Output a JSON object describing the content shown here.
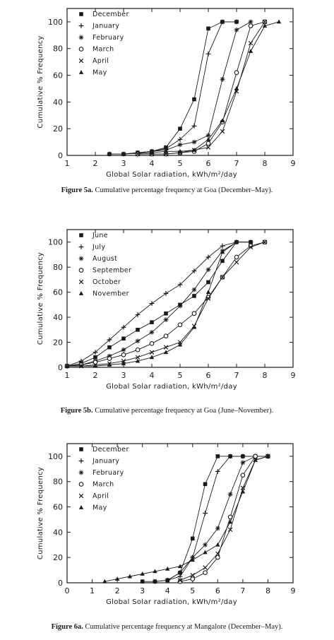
{
  "chart_data": [
    {
      "type": "line",
      "xlabel": "Global Solar radiation, kWh/m²/day",
      "ylabel": "Cumulative % Frequency",
      "xlim": [
        1,
        9
      ],
      "ylim": [
        0,
        110
      ],
      "xticks": [
        1,
        2,
        3,
        4,
        5,
        6,
        7,
        8,
        9
      ],
      "yticks": [
        0,
        20,
        40,
        60,
        80,
        100
      ],
      "legend_position": "top-left",
      "caption_number": "Figure 5a.",
      "caption_text": "Cumulative percentage frequency at Goa (December–May).",
      "series": [
        {
          "name": "December",
          "marker": "square-filled",
          "x": [
            2.5,
            3.0,
            3.5,
            4.0,
            4.5,
            5.0,
            5.5,
            6.0,
            6.5,
            7.0
          ],
          "y": [
            1,
            1,
            2,
            3,
            6,
            20,
            42,
            95,
            100,
            100
          ]
        },
        {
          "name": "January",
          "marker": "plus",
          "x": [
            2.5,
            3.0,
            3.5,
            4.0,
            4.5,
            5.0,
            5.5,
            6.0,
            6.5,
            7.0
          ],
          "y": [
            1,
            1,
            2,
            3,
            5,
            12,
            22,
            76,
            100,
            100
          ]
        },
        {
          "name": "February",
          "marker": "star",
          "x": [
            3.0,
            3.5,
            4.0,
            4.5,
            5.0,
            5.5,
            6.0,
            6.5,
            7.0,
            7.5
          ],
          "y": [
            1,
            2,
            3,
            4,
            8,
            10,
            15,
            57,
            94,
            100
          ]
        },
        {
          "name": "March",
          "marker": "circle-open",
          "x": [
            3.5,
            4.0,
            4.5,
            5.0,
            5.5,
            6.0,
            6.5,
            7.0,
            7.5,
            8.0
          ],
          "y": [
            1,
            1,
            1,
            2,
            3,
            9,
            25,
            62,
            97,
            100
          ]
        },
        {
          "name": "April",
          "marker": "x",
          "x": [
            3.5,
            4.0,
            4.5,
            5.0,
            5.5,
            6.0,
            6.5,
            7.0,
            7.5,
            8.0
          ],
          "y": [
            1,
            1,
            1,
            2,
            4,
            6,
            18,
            48,
            84,
            100
          ]
        },
        {
          "name": "May",
          "marker": "triangle-filled",
          "x": [
            3.0,
            4.0,
            4.5,
            5.0,
            5.5,
            6.0,
            6.5,
            7.0,
            7.5,
            8.0,
            8.5
          ],
          "y": [
            1,
            2,
            3,
            3,
            4,
            12,
            26,
            50,
            78,
            97,
            100
          ]
        }
      ]
    },
    {
      "type": "line",
      "xlabel": "Global Solar radiation, kWh/m²/day",
      "ylabel": "Cumulative % Frequency",
      "xlim": [
        1,
        9
      ],
      "ylim": [
        0,
        110
      ],
      "xticks": [
        1,
        2,
        3,
        4,
        5,
        6,
        7,
        8,
        9
      ],
      "yticks": [
        0,
        20,
        40,
        60,
        80,
        100
      ],
      "legend_position": "top-left",
      "caption_number": "Figure 5b.",
      "caption_text": "Cumulative percentage frequency at Goa (June–November).",
      "series": [
        {
          "name": "June",
          "marker": "square-filled",
          "x": [
            1.0,
            1.5,
            2.0,
            2.5,
            3.0,
            3.5,
            4.0,
            4.5,
            5.0,
            5.5,
            6.0,
            6.5,
            7.0,
            7.5
          ],
          "y": [
            1,
            3,
            8,
            16,
            23,
            30,
            36,
            43,
            50,
            57,
            68,
            85,
            100,
            100
          ]
        },
        {
          "name": "July",
          "marker": "plus",
          "x": [
            1.0,
            1.5,
            2.0,
            2.5,
            3.0,
            3.5,
            4.0,
            4.5,
            5.0,
            5.5,
            6.0,
            6.5,
            7.0,
            7.5
          ],
          "y": [
            1,
            5,
            12,
            22,
            32,
            42,
            51,
            59,
            66,
            77,
            88,
            97,
            100,
            100
          ]
        },
        {
          "name": "August",
          "marker": "star",
          "x": [
            1.0,
            1.5,
            2.0,
            2.5,
            3.0,
            3.5,
            4.0,
            4.5,
            5.0,
            5.5,
            6.0,
            6.5,
            7.0
          ],
          "y": [
            1,
            2,
            5,
            9,
            14,
            21,
            28,
            38,
            49,
            62,
            78,
            93,
            100
          ]
        },
        {
          "name": "September",
          "marker": "circle-open",
          "x": [
            1.0,
            1.5,
            2.0,
            2.5,
            3.0,
            3.5,
            4.0,
            4.5,
            5.0,
            5.5,
            6.0,
            6.5,
            7.0,
            7.5,
            8.0
          ],
          "y": [
            1,
            2,
            4,
            7,
            10,
            14,
            19,
            25,
            34,
            43,
            56,
            72,
            88,
            97,
            100
          ]
        },
        {
          "name": "October",
          "marker": "x",
          "x": [
            1.0,
            1.5,
            2.0,
            2.5,
            3.0,
            3.5,
            4.0,
            4.5,
            5.0,
            5.5,
            6.0,
            6.5,
            7.0,
            7.5,
            8.0
          ],
          "y": [
            1,
            1,
            2,
            3,
            5,
            8,
            12,
            16,
            20,
            33,
            55,
            72,
            84,
            96,
            100
          ]
        },
        {
          "name": "November",
          "marker": "triangle-filled",
          "x": [
            1.0,
            1.5,
            2.0,
            2.5,
            3.0,
            3.5,
            4.0,
            4.5,
            5.0,
            5.5,
            6.0,
            6.5,
            7.0,
            7.5
          ],
          "y": [
            1,
            1,
            1,
            2,
            3,
            5,
            8,
            12,
            18,
            32,
            60,
            92,
            100,
            100
          ]
        }
      ]
    },
    {
      "type": "line",
      "xlabel": "Global Solar radiation, kWh/m²/day",
      "ylabel": "Cumulative % Frequency",
      "xlim": [
        0,
        9
      ],
      "ylim": [
        0,
        110
      ],
      "xticks": [
        0,
        1,
        2,
        3,
        4,
        5,
        6,
        7,
        8,
        9
      ],
      "yticks": [
        0,
        20,
        40,
        60,
        80,
        100
      ],
      "legend_position": "top-left",
      "caption_number": "Figure 6a.",
      "caption_text": "Cumulative percentage frequency at Mangalore (December–May).",
      "series": [
        {
          "name": "December",
          "marker": "square-filled",
          "x": [
            3.0,
            3.5,
            4.0,
            4.5,
            5.0,
            5.5,
            6.0,
            6.5,
            7.0,
            7.5
          ],
          "y": [
            1,
            1,
            2,
            8,
            35,
            78,
            100,
            100,
            100,
            100
          ]
        },
        {
          "name": "January",
          "marker": "plus",
          "x": [
            3.5,
            4.0,
            4.5,
            5.0,
            5.5,
            6.0,
            6.5,
            7.0,
            7.5
          ],
          "y": [
            1,
            2,
            5,
            20,
            55,
            88,
            100,
            100,
            100
          ]
        },
        {
          "name": "February",
          "marker": "star",
          "x": [
            4.0,
            4.5,
            5.0,
            5.5,
            6.0,
            6.5,
            7.0,
            7.5,
            8.0
          ],
          "y": [
            2,
            8,
            20,
            30,
            43,
            70,
            95,
            100,
            100
          ]
        },
        {
          "name": "March",
          "marker": "circle-open",
          "x": [
            4.5,
            5.0,
            5.5,
            6.0,
            6.5,
            7.0,
            7.5,
            8.0
          ],
          "y": [
            1,
            3,
            8,
            20,
            52,
            85,
            100,
            100
          ]
        },
        {
          "name": "April",
          "marker": "x",
          "x": [
            4.5,
            5.0,
            5.5,
            6.0,
            6.5,
            7.0,
            7.5,
            8.0
          ],
          "y": [
            2,
            6,
            12,
            23,
            42,
            75,
            97,
            100
          ]
        },
        {
          "name": "May",
          "marker": "triangle-filled",
          "x": [
            1.5,
            2.0,
            2.5,
            3.0,
            3.5,
            4.0,
            4.5,
            5.0,
            5.5,
            6.0,
            6.5,
            7.0,
            7.5,
            8.0
          ],
          "y": [
            1,
            3,
            5,
            7,
            9,
            11,
            13,
            18,
            24,
            30,
            48,
            72,
            97,
            100
          ]
        }
      ]
    }
  ]
}
